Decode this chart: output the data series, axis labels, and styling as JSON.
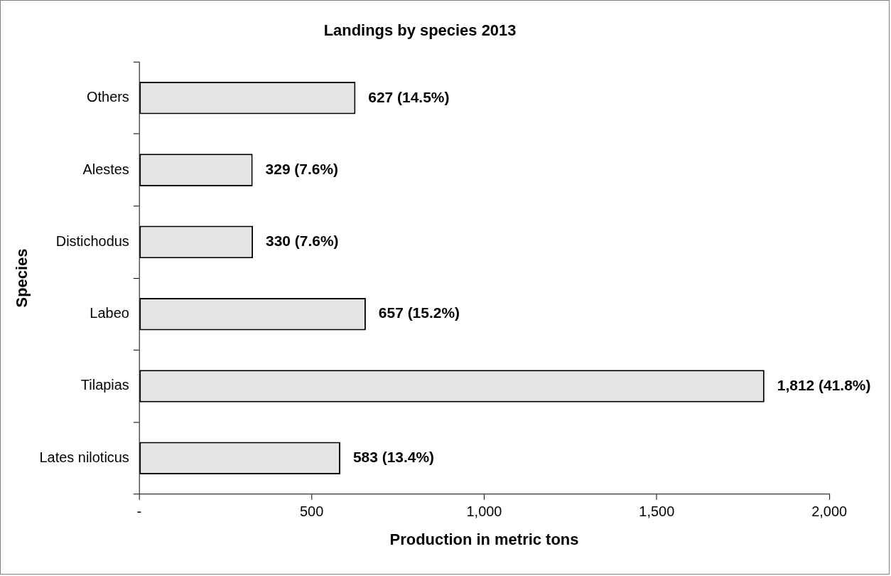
{
  "chart_data": {
    "type": "bar",
    "orientation": "horizontal",
    "title": "Landings by species 2013",
    "xlabel": "Production in metric tons",
    "ylabel": "Species",
    "categories": [
      "Others",
      "Alestes",
      "Distichodus",
      "Labeo",
      "Tilapias",
      "Lates niloticus"
    ],
    "values": [
      627,
      329,
      330,
      657,
      1812,
      583
    ],
    "value_labels": [
      "627 (14.5%)",
      "329 (7.6%)",
      "330 (7.6%)",
      "657 (15.2%)",
      "1,812 (41.8%)",
      "583 (13.4%)"
    ],
    "color": "#e4e4e4",
    "xlim": [
      0,
      2000
    ],
    "xticks": [
      {
        "value": 0,
        "label": "-"
      },
      {
        "value": 500,
        "label": "500"
      },
      {
        "value": 1000,
        "label": "1,000"
      },
      {
        "value": 1500,
        "label": "1,500"
      },
      {
        "value": 2000,
        "label": "2,000"
      }
    ],
    "grid": false,
    "legend": false
  }
}
